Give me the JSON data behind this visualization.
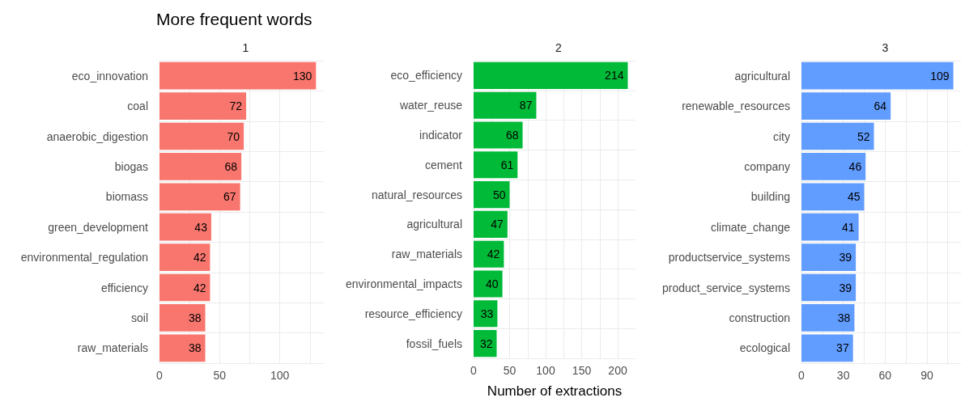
{
  "chart_data": [
    {
      "type": "bar",
      "orientation": "horizontal",
      "title": "More frequent words",
      "subtitle": "1",
      "categories": [
        "eco_innovation",
        "coal",
        "anaerobic_digestion",
        "biogas",
        "biomass",
        "green_development",
        "environmental_regulation",
        "efficiency",
        "soil",
        "raw_materials"
      ],
      "values": [
        130,
        72,
        70,
        68,
        67,
        43,
        42,
        42,
        38,
        38
      ],
      "color": "#f8766d",
      "data_labels": true,
      "xlim": [
        0,
        136.5
      ],
      "xticks": [
        0,
        {
          "value": 25,
          "label": null
        },
        50,
        {
          "value": 75,
          "label": null
        },
        100,
        {
          "value": 125,
          "label": null
        }
      ],
      "grid": true
    },
    {
      "type": "bar",
      "orientation": "horizontal",
      "subtitle": "2",
      "xlabel": "Number of extractions",
      "categories": [
        "eco_efficiency",
        "water_reuse",
        "indicator",
        "cement",
        "natural_resources",
        "agricultural",
        "raw_materials",
        "environmental_impacts",
        "resource_efficiency",
        "fossil_fuels"
      ],
      "values": [
        214,
        87,
        68,
        61,
        50,
        47,
        42,
        40,
        33,
        32
      ],
      "color": "#00ba38",
      "data_labels": true,
      "xlim": [
        0,
        224.7
      ],
      "xticks": [
        0,
        {
          "value": 25,
          "label": null
        },
        50,
        {
          "value": 75,
          "label": null
        },
        100,
        {
          "value": 125,
          "label": null
        },
        150,
        {
          "value": 175,
          "label": null
        },
        200
      ],
      "grid": true
    },
    {
      "type": "bar",
      "orientation": "horizontal",
      "subtitle": "3",
      "categories": [
        "agricultural",
        "renewable_resources",
        "city",
        "company",
        "building",
        "climate_change",
        "productservice_systems",
        "product_service_systems",
        "construction",
        "ecological"
      ],
      "values": [
        109,
        64,
        52,
        46,
        45,
        41,
        39,
        39,
        38,
        37
      ],
      "color": "#619cff",
      "data_labels": true,
      "xlim": [
        0,
        114.45
      ],
      "xticks": [
        0,
        {
          "value": 15,
          "label": null
        },
        30,
        {
          "value": 45,
          "label": null
        },
        60,
        {
          "value": 75,
          "label": null
        },
        90,
        {
          "value": 105,
          "label": null
        }
      ],
      "grid": true
    }
  ]
}
